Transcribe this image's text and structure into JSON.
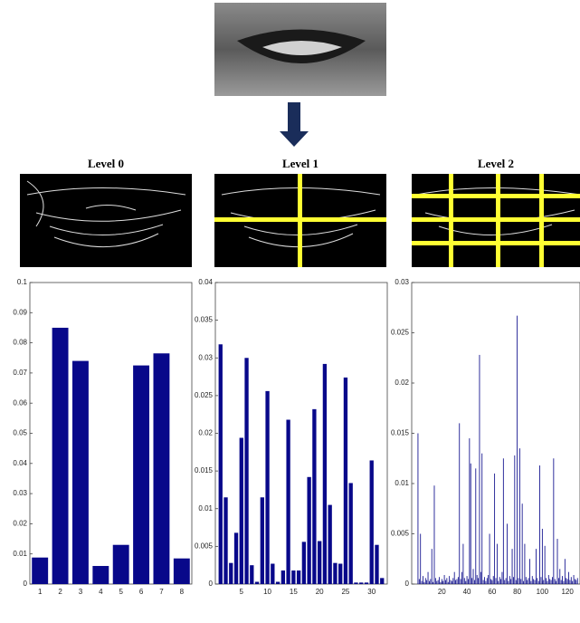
{
  "chart_data": [
    {
      "type": "bar",
      "title": "Level 0",
      "color": "#08088a",
      "x": [
        1,
        2,
        3,
        4,
        5,
        6,
        7,
        8
      ],
      "values": [
        0.0088,
        0.085,
        0.074,
        0.006,
        0.013,
        0.0725,
        0.0765,
        0.0085
      ],
      "xlim": [
        0.5,
        8.5
      ],
      "xticks": [
        1,
        2,
        3,
        4,
        5,
        6,
        7,
        8
      ],
      "ylim": [
        0,
        0.1
      ],
      "yticks": [
        0,
        0.01,
        0.02,
        0.03,
        0.04,
        0.05,
        0.06,
        0.07,
        0.08,
        0.09,
        0.1
      ]
    },
    {
      "type": "bar",
      "title": "Level 1",
      "color": "#08088a",
      "x": [
        1,
        2,
        3,
        4,
        5,
        6,
        7,
        8,
        9,
        10,
        11,
        12,
        13,
        14,
        15,
        16,
        17,
        18,
        19,
        20,
        21,
        22,
        23,
        24,
        25,
        26,
        27,
        28,
        29,
        30,
        31,
        32
      ],
      "values": [
        0.0318,
        0.0115,
        0.0028,
        0.0068,
        0.0194,
        0.03,
        0.0025,
        0.0003,
        0.0115,
        0.0256,
        0.0027,
        0.0003,
        0.0018,
        0.0218,
        0.0018,
        0.0018,
        0.0056,
        0.0142,
        0.0232,
        0.0057,
        0.0292,
        0.0105,
        0.0028,
        0.0027,
        0.0274,
        0.0134,
        0.0002,
        0.0002,
        0.0002,
        0.0164,
        0.0052,
        0.0008
      ],
      "xlim": [
        0,
        33
      ],
      "xticks": [
        5,
        10,
        15,
        20,
        25,
        30
      ],
      "ylim": [
        0,
        0.04
      ],
      "yticks": [
        0,
        0.005,
        0.01,
        0.015,
        0.02,
        0.025,
        0.03,
        0.035,
        0.04
      ]
    },
    {
      "type": "bar",
      "title": "Level 2",
      "color": "#08088a",
      "x": [
        1,
        2,
        3,
        4,
        5,
        6,
        7,
        8,
        9,
        10,
        11,
        12,
        13,
        14,
        15,
        16,
        17,
        18,
        19,
        20,
        21,
        22,
        23,
        24,
        25,
        26,
        27,
        28,
        29,
        30,
        31,
        32,
        33,
        34,
        35,
        36,
        37,
        38,
        39,
        40,
        41,
        42,
        43,
        44,
        45,
        46,
        47,
        48,
        49,
        50,
        51,
        52,
        53,
        54,
        55,
        56,
        57,
        58,
        59,
        60,
        61,
        62,
        63,
        64,
        65,
        66,
        67,
        68,
        69,
        70,
        71,
        72,
        73,
        74,
        75,
        76,
        77,
        78,
        79,
        80,
        81,
        82,
        83,
        84,
        85,
        86,
        87,
        88,
        89,
        90,
        91,
        92,
        93,
        94,
        95,
        96,
        97,
        98,
        99,
        100,
        101,
        102,
        103,
        104,
        105,
        106,
        107,
        108,
        109,
        110,
        111,
        112,
        113,
        114,
        115,
        116,
        117,
        118,
        119,
        120,
        121,
        122,
        123,
        124,
        125,
        126,
        127,
        128
      ],
      "values": [
        0.015,
        0.0005,
        0.005,
        0.0003,
        0.0008,
        0.0002,
        0.0006,
        0.0004,
        0.0012,
        0.0003,
        0.0005,
        0.0035,
        0.0002,
        0.0098,
        0.0006,
        0.0003,
        0.0004,
        0.0007,
        0.0002,
        0.0005,
        0.0003,
        0.0009,
        0.0004,
        0.0006,
        0.0002,
        0.0008,
        0.0004,
        0.0003,
        0.0006,
        0.0012,
        0.0004,
        0.0005,
        0.0007,
        0.016,
        0.0005,
        0.0012,
        0.004,
        0.0006,
        0.0003,
        0.0008,
        0.0005,
        0.0145,
        0.012,
        0.0006,
        0.0015,
        0.0004,
        0.0115,
        0.0009,
        0.0006,
        0.0228,
        0.0012,
        0.013,
        0.0004,
        0.0007,
        0.0003,
        0.0006,
        0.0009,
        0.005,
        0.0005,
        0.0004,
        0.0008,
        0.011,
        0.0006,
        0.004,
        0.0003,
        0.0007,
        0.0005,
        0.0012,
        0.0125,
        0.0004,
        0.0006,
        0.006,
        0.0003,
        0.0008,
        0.0005,
        0.0035,
        0.0007,
        0.0128,
        0.0004,
        0.0267,
        0.0006,
        0.0135,
        0.0005,
        0.008,
        0.0003,
        0.004,
        0.0007,
        0.0004,
        0.0006,
        0.0025,
        0.0003,
        0.0008,
        0.0005,
        0.0004,
        0.0035,
        0.0006,
        0.0003,
        0.0118,
        0.0007,
        0.0055,
        0.0004,
        0.0038,
        0.0006,
        0.0003,
        0.0009,
        0.0005,
        0.0004,
        0.0007,
        0.0125,
        0.0005,
        0.0003,
        0.0045,
        0.0006,
        0.0015,
        0.0004,
        0.0008,
        0.0003,
        0.0025,
        0.0006,
        0.0005,
        0.0012,
        0.0004,
        0.0007,
        0.0003,
        0.0009,
        0.0005,
        0.0004,
        0.0006
      ],
      "xlim": [
        -4,
        130
      ],
      "xticks": [
        20,
        40,
        60,
        80,
        100,
        120
      ],
      "ylim": [
        0,
        0.03
      ],
      "yticks": [
        0,
        0.005,
        0.01,
        0.015,
        0.02,
        0.025,
        0.03
      ]
    }
  ]
}
